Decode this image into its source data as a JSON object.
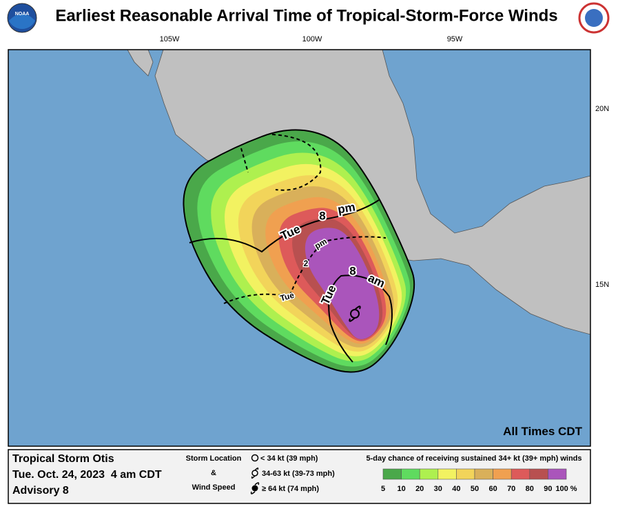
{
  "header": {
    "title": "Earliest Reasonable Arrival Time of Tropical-Storm-Force Winds",
    "logo_left": "NOAA"
  },
  "map": {
    "lon_labels": [
      "105W",
      "100W",
      "95W"
    ],
    "lat_labels": [
      "20N",
      "15N"
    ],
    "contour_labels": {
      "tue_8pm": [
        "Tue",
        "8",
        "pm"
      ],
      "tue_8am": [
        "Tue",
        "8",
        "am"
      ],
      "tue_2pm": [
        "Tue",
        "2",
        "pm"
      ]
    },
    "note": "All Times CDT"
  },
  "footer": {
    "storm": "Tropical Storm Otis",
    "date": "Tue. Oct. 24, 2023  4 am CDT",
    "advisory": "Advisory 8",
    "storm_location": {
      "title_lines": [
        "Storm Location",
        "&",
        "Wind Speed"
      ],
      "items": [
        "< 34 kt (39 mph)",
        "34-63 kt (39-73 mph)",
        "≥ 64 kt (74 mph)"
      ]
    },
    "legend": {
      "title": "5-day chance of receiving sustained 34+ kt (39+ mph) winds",
      "colors": [
        "#4aa84a",
        "#5fdb5f",
        "#aef04f",
        "#f2f261",
        "#f2d45a",
        "#d9b05a",
        "#f0a050",
        "#dd5a5a",
        "#b85050",
        "#aa55bb"
      ],
      "labels": [
        "5",
        "10",
        "20",
        "30",
        "40",
        "50",
        "60",
        "70",
        "80",
        "90",
        "100 %"
      ]
    }
  }
}
